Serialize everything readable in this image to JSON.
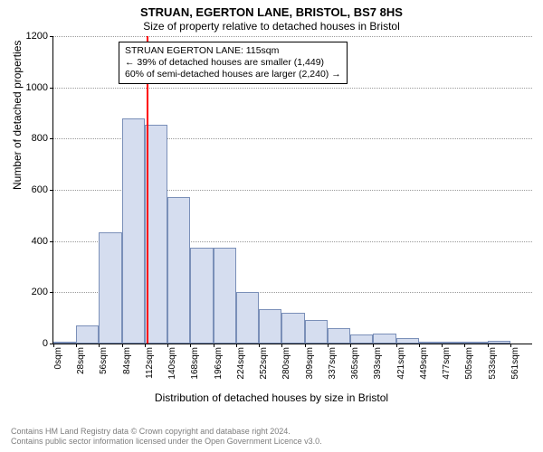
{
  "title": "STRUAN, EGERTON LANE, BRISTOL, BS7 8HS",
  "subtitle": "Size of property relative to detached houses in Bristol",
  "title_fontsize": 13,
  "subtitle_fontsize": 12,
  "chart": {
    "type": "histogram",
    "ylabel": "Number of detached properties",
    "xlabel": "Distribution of detached houses by size in Bristol",
    "ylim": [
      0,
      1200
    ],
    "ytick_step": 200,
    "yticks": [
      0,
      200,
      400,
      600,
      800,
      1000,
      1200
    ],
    "xticks": [
      "0sqm",
      "28sqm",
      "56sqm",
      "84sqm",
      "112sqm",
      "140sqm",
      "168sqm",
      "196sqm",
      "224sqm",
      "252sqm",
      "280sqm",
      "309sqm",
      "337sqm",
      "365sqm",
      "393sqm",
      "421sqm",
      "449sqm",
      "477sqm",
      "505sqm",
      "533sqm",
      "561sqm"
    ],
    "bars": [
      8,
      70,
      435,
      880,
      855,
      570,
      375,
      375,
      200,
      135,
      120,
      90,
      60,
      35,
      40,
      20,
      8,
      8,
      5,
      12,
      0
    ],
    "bar_fill": "#d5ddef",
    "bar_stroke": "#7a8fb8",
    "grid_color": "#9a9a9a",
    "background_color": "#ffffff",
    "marker": {
      "position_sqm": 115,
      "color": "#ff0000"
    },
    "annotation": {
      "line1": "STRUAN EGERTON LANE: 115sqm",
      "line2": "← 39% of detached houses are smaller (1,449)",
      "line3": "60% of semi-detached houses are larger (2,240) →",
      "border_color": "#000000",
      "fontsize": 10.5
    }
  },
  "footer": {
    "line1": "Contains HM Land Registry data © Crown copyright and database right 2024.",
    "line2": "Contains public sector information licensed under the Open Government Licence v3.0.",
    "color": "#7d7d7d"
  }
}
